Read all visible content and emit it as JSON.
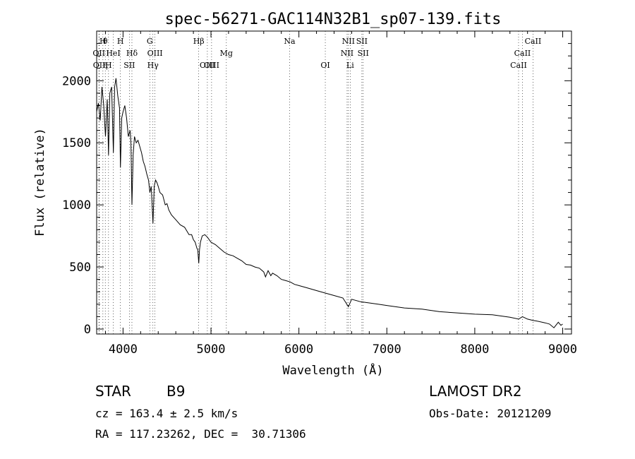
{
  "chart_data": {
    "type": "line",
    "title": "spec-56271-GAC114N32B1_sp07-139.fits",
    "xlabel": "Wavelength (Å)",
    "ylabel": "Flux (relative)",
    "xlim": [
      3700,
      9100
    ],
    "ylim": [
      -40,
      2400
    ],
    "xticks": [
      {
        "value": 4000,
        "label": "4000"
      },
      {
        "value": 5000,
        "label": "5000"
      },
      {
        "value": 6000,
        "label": "6000"
      },
      {
        "value": 7000,
        "label": "7000"
      },
      {
        "value": 8000,
        "label": "8000"
      },
      {
        "value": 9000,
        "label": "9000"
      }
    ],
    "yticks": [
      {
        "value": 0,
        "label": "0"
      },
      {
        "value": 500,
        "label": "500"
      },
      {
        "value": 1000,
        "label": "1000"
      },
      {
        "value": 1500,
        "label": "1500"
      },
      {
        "value": 2000,
        "label": "2000"
      }
    ],
    "grid": false,
    "series": [
      {
        "x": [
          3700,
          3720,
          3740,
          3760,
          3780,
          3800,
          3820,
          3835,
          3850,
          3870,
          3890,
          3905,
          3920,
          3940,
          3960,
          3970,
          3985,
          4000,
          4020,
          4040,
          4060,
          4080,
          4090,
          4101,
          4115,
          4130,
          4150,
          4170,
          4190,
          4210,
          4230,
          4250,
          4270,
          4290,
          4305,
          4320,
          4340,
          4355,
          4370,
          4385,
          4400,
          4420,
          4450,
          4480,
          4500,
          4520,
          4550,
          4600,
          4650,
          4700,
          4750,
          4780,
          4800,
          4820,
          4840,
          4850,
          4861,
          4870,
          4880,
          4900,
          4930,
          4960,
          5000,
          5050,
          5100,
          5150,
          5200,
          5250,
          5300,
          5350,
          5400,
          5450,
          5500,
          5550,
          5600,
          5620,
          5650,
          5680,
          5700,
          5750,
          5800,
          5850,
          5900,
          5950,
          6000,
          6100,
          6200,
          6300,
          6400,
          6500,
          6563,
          6600,
          6700,
          6800,
          6900,
          7000,
          7200,
          7400,
          7600,
          7800,
          8000,
          8200,
          8400,
          8498,
          8542,
          8600,
          8662,
          8700,
          8800,
          8850,
          8900,
          8950,
          8980,
          9000
        ],
        "y": [
          1750,
          1820,
          1680,
          1950,
          1800,
          1550,
          1850,
          1400,
          1900,
          1950,
          1420,
          1950,
          2020,
          1880,
          1780,
          1300,
          1700,
          1750,
          1800,
          1700,
          1550,
          1600,
          1500,
          1000,
          1400,
          1550,
          1500,
          1520,
          1470,
          1420,
          1350,
          1310,
          1250,
          1200,
          1100,
          1150,
          850,
          1150,
          1200,
          1180,
          1150,
          1100,
          1080,
          1000,
          1010,
          960,
          920,
          880,
          840,
          820,
          760,
          760,
          720,
          700,
          650,
          640,
          530,
          640,
          700,
          750,
          760,
          740,
          700,
          680,
          650,
          620,
          600,
          590,
          570,
          550,
          520,
          515,
          500,
          490,
          460,
          420,
          470,
          430,
          450,
          430,
          400,
          390,
          380,
          360,
          350,
          330,
          310,
          290,
          270,
          250,
          180,
          240,
          220,
          210,
          200,
          190,
          170,
          160,
          140,
          130,
          120,
          115,
          95,
          80,
          100,
          80,
          70,
          65,
          50,
          40,
          10,
          55,
          30,
          40
        ]
      }
    ],
    "line_markers": [
      {
        "wave": 3726,
        "label": "OII",
        "row": 2
      },
      {
        "wave": 3729,
        "label": "OII",
        "row": 3
      },
      {
        "wave": 3771,
        "label": "H",
        "row": 1
      },
      {
        "wave": 3771,
        "label": "θ",
        "row": 1,
        "sub": true
      },
      {
        "wave": 3798,
        "label": "η",
        "row": 3
      },
      {
        "wave": 3835,
        "label": "H",
        "row": 3
      },
      {
        "wave": 3889,
        "label": "HeI",
        "row": 2
      },
      {
        "wave": 3970,
        "label": "H",
        "row": 1
      },
      {
        "wave": 4072,
        "label": "SII",
        "row": 3
      },
      {
        "wave": 4101,
        "label": "Hδ",
        "row": 2
      },
      {
        "wave": 4304,
        "label": "G",
        "row": 1
      },
      {
        "wave": 4340,
        "label": "Hγ",
        "row": 3
      },
      {
        "wave": 4363,
        "label": "OIII",
        "row": 2
      },
      {
        "wave": 4861,
        "label": "Hβ",
        "row": 1
      },
      {
        "wave": 4959,
        "label": "OIII",
        "row": 3
      },
      {
        "wave": 5007,
        "label": "OIII",
        "row": 3
      },
      {
        "wave": 5175,
        "label": "Mg",
        "row": 2
      },
      {
        "wave": 5894,
        "label": "Na",
        "row": 1
      },
      {
        "wave": 6300,
        "label": "OI",
        "row": 3
      },
      {
        "wave": 6548,
        "label": "NII",
        "row": 2
      },
      {
        "wave": 6563,
        "label": "NII",
        "row": 1
      },
      {
        "wave": 6583,
        "label": "Li",
        "row": 3
      },
      {
        "wave": 6716,
        "label": "SII",
        "row": 1
      },
      {
        "wave": 6731,
        "label": "SII",
        "row": 2
      },
      {
        "wave": 8498,
        "label": "CaII",
        "row": 3
      },
      {
        "wave": 8542,
        "label": "CaII",
        "row": 2
      },
      {
        "wave": 8662,
        "label": "CaII",
        "row": 1
      }
    ]
  },
  "info": {
    "class": "STAR",
    "subclass": "B9",
    "survey": "LAMOST DR2",
    "cz": "cz = 163.4 ± 2.5 km/s",
    "obs_date": "Obs-Date: 20121209",
    "coords": "RA = 117.23262, DEC =  30.71306"
  }
}
